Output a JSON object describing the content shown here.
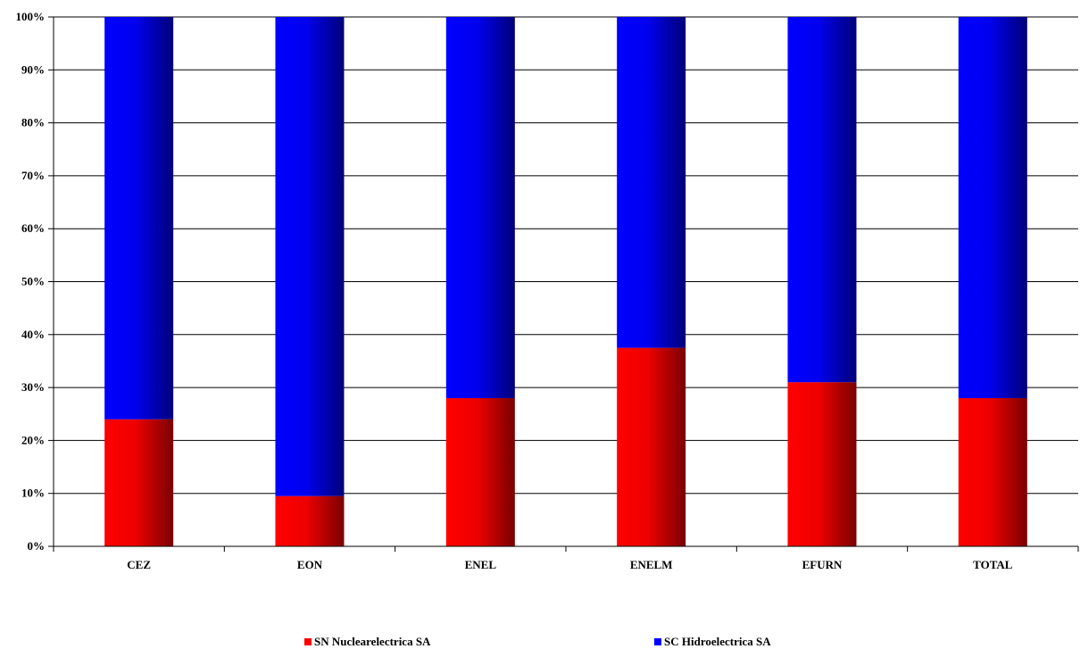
{
  "chart_data": {
    "type": "bar",
    "stacked": true,
    "percent_stacked": true,
    "categories": [
      "CEZ",
      "EON",
      "ENEL",
      "ENELM",
      "EFURN",
      "TOTAL"
    ],
    "series": [
      {
        "name": "SN Nuclearelectrica SA",
        "values": [
          24,
          9.5,
          28,
          37.5,
          31,
          28
        ],
        "color": "#ff0000",
        "shade": "#800000"
      },
      {
        "name": "SC Hidroelectrica SA",
        "values": [
          76,
          90.5,
          72,
          62.5,
          69,
          72
        ],
        "color": "#0000ff",
        "shade": "#000080"
      }
    ],
    "y_ticks": [
      "0%",
      "10%",
      "20%",
      "30%",
      "40%",
      "50%",
      "60%",
      "70%",
      "80%",
      "90%",
      "100%"
    ],
    "ylim": [
      0,
      100
    ],
    "grid": true,
    "legend_position": "bottom"
  }
}
